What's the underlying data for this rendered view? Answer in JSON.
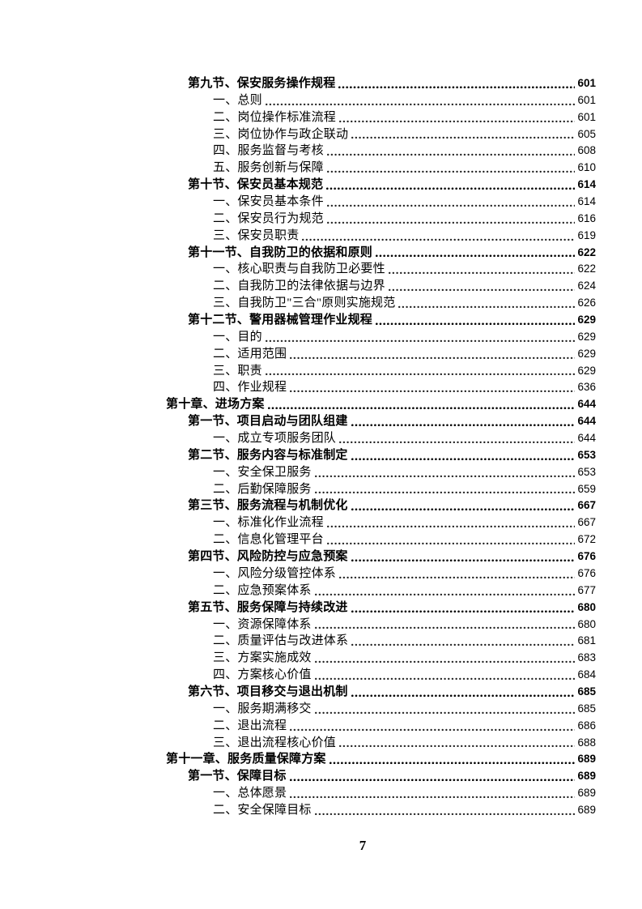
{
  "footer": {
    "page_number": "7"
  },
  "toc": {
    "entries": [
      {
        "level": 2,
        "bold": true,
        "text": "第九节、保安服务操作规程",
        "page": "601"
      },
      {
        "level": 3,
        "bold": false,
        "text": "一、总则",
        "page": "601"
      },
      {
        "level": 3,
        "bold": false,
        "text": "二、岗位操作标准流程",
        "page": "601"
      },
      {
        "level": 3,
        "bold": false,
        "text": "三、岗位协作与政企联动",
        "page": "605"
      },
      {
        "level": 3,
        "bold": false,
        "text": "四、服务监督与考核",
        "page": "608"
      },
      {
        "level": 3,
        "bold": false,
        "text": "五、服务创新与保障",
        "page": "610"
      },
      {
        "level": 2,
        "bold": true,
        "text": "第十节、保安员基本规范",
        "page": "614"
      },
      {
        "level": 3,
        "bold": false,
        "text": "一、保安员基本条件",
        "page": "614"
      },
      {
        "level": 3,
        "bold": false,
        "text": "二、保安员行为规范",
        "page": "616"
      },
      {
        "level": 3,
        "bold": false,
        "text": "三、保安员职责",
        "page": "619"
      },
      {
        "level": 2,
        "bold": true,
        "text": "第十一节、自我防卫的依据和原则",
        "page": "622"
      },
      {
        "level": 3,
        "bold": false,
        "text": "一、核心职责与自我防卫必要性",
        "page": "622"
      },
      {
        "level": 3,
        "bold": false,
        "text": "二、自我防卫的法律依据与边界",
        "page": "624"
      },
      {
        "level": 3,
        "bold": false,
        "text": "三、自我防卫\"三合\"原则实施规范",
        "page": "626"
      },
      {
        "level": 2,
        "bold": true,
        "text": "第十二节、警用器械管理作业规程",
        "page": "629"
      },
      {
        "level": 3,
        "bold": false,
        "text": "一、目的",
        "page": "629"
      },
      {
        "level": 3,
        "bold": false,
        "text": "二、适用范围",
        "page": "629"
      },
      {
        "level": 3,
        "bold": false,
        "text": "三、职责",
        "page": "629"
      },
      {
        "level": 3,
        "bold": false,
        "text": "四、作业规程",
        "page": "636"
      },
      {
        "level": 1,
        "bold": true,
        "text": "第十章、进场方案",
        "page": "644"
      },
      {
        "level": 2,
        "bold": true,
        "text": "第一节、项目启动与团队组建",
        "page": "644"
      },
      {
        "level": 3,
        "bold": false,
        "text": "一、成立专项服务团队",
        "page": "644"
      },
      {
        "level": 2,
        "bold": true,
        "text": "第二节、服务内容与标准制定",
        "page": "653"
      },
      {
        "level": 3,
        "bold": false,
        "text": "一、安全保卫服务",
        "page": "653"
      },
      {
        "level": 3,
        "bold": false,
        "text": "二、后勤保障服务",
        "page": "659"
      },
      {
        "level": 2,
        "bold": true,
        "text": "第三节、服务流程与机制优化",
        "page": "667"
      },
      {
        "level": 3,
        "bold": false,
        "text": "一、标准化作业流程",
        "page": "667"
      },
      {
        "level": 3,
        "bold": false,
        "text": "二、信息化管理平台",
        "page": "672"
      },
      {
        "level": 2,
        "bold": true,
        "text": "第四节、风险防控与应急预案",
        "page": "676"
      },
      {
        "level": 3,
        "bold": false,
        "text": "一、风险分级管控体系",
        "page": "676"
      },
      {
        "level": 3,
        "bold": false,
        "text": "二、应急预案体系",
        "page": "677"
      },
      {
        "level": 2,
        "bold": true,
        "text": "第五节、服务保障与持续改进",
        "page": "680"
      },
      {
        "level": 3,
        "bold": false,
        "text": "一、资源保障体系",
        "page": "680"
      },
      {
        "level": 3,
        "bold": false,
        "text": "二、质量评估与改进体系",
        "page": "681"
      },
      {
        "level": 3,
        "bold": false,
        "text": "三、方案实施成效",
        "page": "683"
      },
      {
        "level": 3,
        "bold": false,
        "text": "四、方案核心价值",
        "page": "684"
      },
      {
        "level": 2,
        "bold": true,
        "text": "第六节、项目移交与退出机制",
        "page": "685"
      },
      {
        "level": 3,
        "bold": false,
        "text": "一、服务期满移交",
        "page": "685"
      },
      {
        "level": 3,
        "bold": false,
        "text": "二、退出流程",
        "page": "686"
      },
      {
        "level": 3,
        "bold": false,
        "text": "三、退出流程核心价值",
        "page": "688"
      },
      {
        "level": 1,
        "bold": true,
        "text": "第十一章、服务质量保障方案",
        "page": "689"
      },
      {
        "level": 2,
        "bold": true,
        "text": "第一节、保障目标",
        "page": "689"
      },
      {
        "level": 3,
        "bold": false,
        "text": "一、总体愿景",
        "page": "689"
      },
      {
        "level": 3,
        "bold": false,
        "text": "二、安全保障目标",
        "page": "689"
      }
    ]
  }
}
